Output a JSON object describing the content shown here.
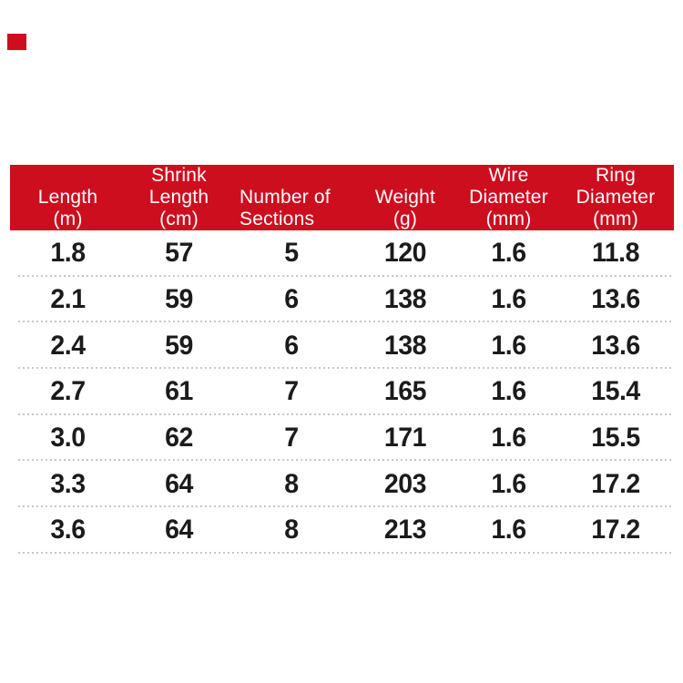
{
  "page": {
    "background_color": "#ffffff"
  },
  "accent": {
    "corner_mark_color": "#cd0e1f"
  },
  "table": {
    "header_bg_color": "#cd0e1f",
    "header_text_color": "#ffffff",
    "body_text_color": "#1b1b1b",
    "divider_color": "#c7c7c7",
    "columns": [
      {
        "id": "length",
        "label_lines": [
          "Length",
          "(m)"
        ]
      },
      {
        "id": "shrink_length",
        "label_lines": [
          "Shrink",
          "Length",
          "(cm)"
        ]
      },
      {
        "id": "sections",
        "label_lines": [
          "Number of",
          "Sections"
        ]
      },
      {
        "id": "weight",
        "label_lines": [
          "Weight",
          "(g)"
        ]
      },
      {
        "id": "wire_diameter",
        "label_lines": [
          "Wire",
          "Diameter",
          "(mm)"
        ]
      },
      {
        "id": "ring_diameter",
        "label_lines": [
          "Ring",
          "Diameter",
          "(mm)"
        ]
      }
    ],
    "rows": [
      [
        "1.8",
        "57",
        "5",
        "120",
        "1.6",
        "11.8"
      ],
      [
        "2.1",
        "59",
        "6",
        "138",
        "1.6",
        "13.6"
      ],
      [
        "2.4",
        "59",
        "6",
        "138",
        "1.6",
        "13.6"
      ],
      [
        "2.7",
        "61",
        "7",
        "165",
        "1.6",
        "15.4"
      ],
      [
        "3.0",
        "62",
        "7",
        "171",
        "1.6",
        "15.5"
      ],
      [
        "3.3",
        "64",
        "8",
        "203",
        "1.6",
        "17.2"
      ],
      [
        "3.6",
        "64",
        "8",
        "213",
        "1.6",
        "17.2"
      ]
    ]
  }
}
